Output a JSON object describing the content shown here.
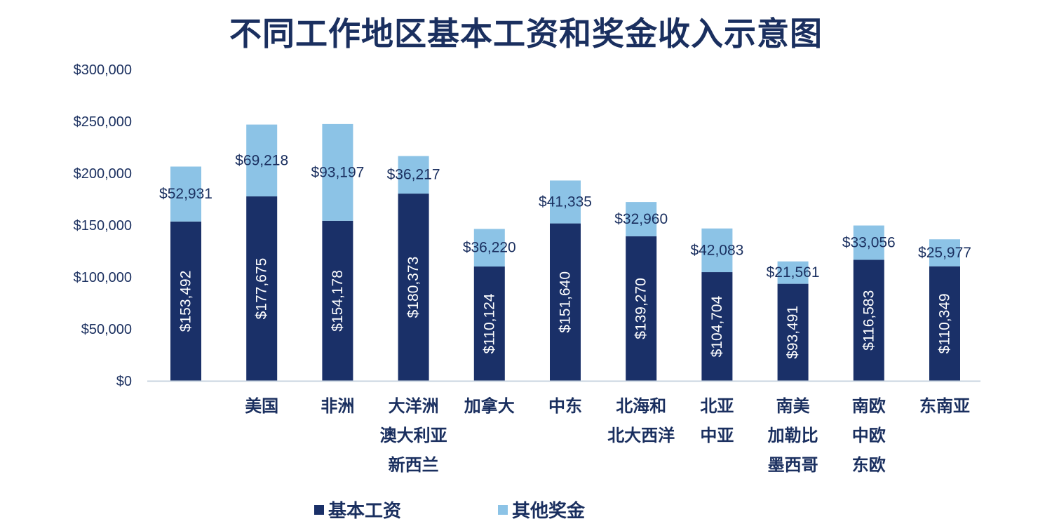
{
  "colors": {
    "base": "#1a3068",
    "bonus": "#8cc3e6",
    "text": "#1a2f5f",
    "axis": "#c8d4e0"
  },
  "chart_data": {
    "type": "bar",
    "stacked": true,
    "title": "不同工作地区基本工资和奖金收入示意图",
    "categories": [
      [],
      [
        "美国"
      ],
      [
        "非洲"
      ],
      [
        "大洋洲",
        "澳大利亚",
        "新西兰"
      ],
      [
        "加拿大"
      ],
      [
        "中东"
      ],
      [
        "北海和",
        "北大西洋"
      ],
      [
        "北亚",
        "中亚"
      ],
      [
        "南美",
        "加勒比",
        "墨西哥"
      ],
      [
        "南欧",
        "中欧",
        "东欧"
      ],
      [
        "东南亚"
      ]
    ],
    "series": [
      {
        "name": "基本工资",
        "values": [
          153492,
          177675,
          154178,
          180373,
          110124,
          151640,
          139270,
          104704,
          93491,
          116583,
          110349
        ],
        "labels": [
          "$153,492",
          "$177,675",
          "$154,178",
          "$180,373",
          "$110,124",
          "$151,640",
          "$139,270",
          "$104,704",
          "$93,491",
          "$116,583",
          "$110,349"
        ]
      },
      {
        "name": "其他奖金",
        "values": [
          52931,
          69218,
          93197,
          36217,
          36220,
          41335,
          32960,
          42083,
          21561,
          33056,
          25977
        ],
        "labels": [
          "$52,931",
          "$69,218",
          "$93,197",
          "$36,217",
          "$36,220",
          "$41,335",
          "$32,960",
          "$42,083",
          "$21,561",
          "$33,056",
          "$25,977"
        ]
      }
    ],
    "ylim": [
      0,
      300000
    ],
    "yticks": [
      0,
      50000,
      100000,
      150000,
      200000,
      250000,
      300000
    ],
    "ytick_labels": [
      "$0",
      "$50,000",
      "$100,000",
      "$150,000",
      "$200,000",
      "$250,000",
      "$300,000"
    ],
    "legend_position": "bottom",
    "grid": false
  }
}
